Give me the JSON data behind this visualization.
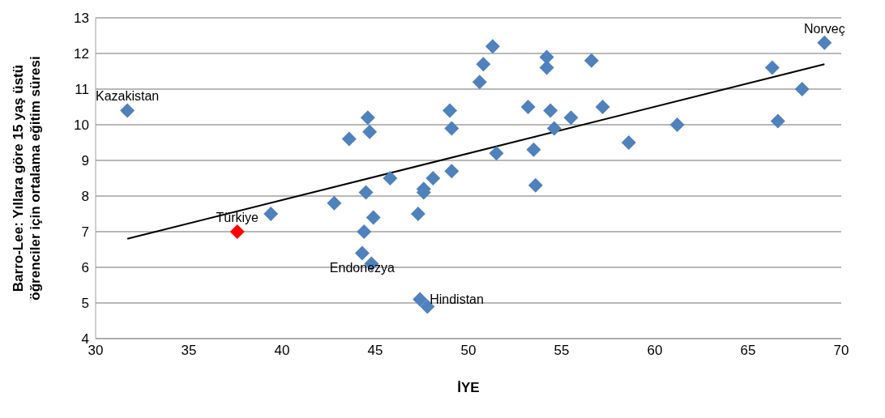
{
  "chart_data": {
    "type": "scatter",
    "xlabel": "İYE",
    "ylabel": "Barro-Lee: Yıllara göre 15 yaş üstü öğrenciler için ortalama eğitim süresi",
    "xlim": [
      30,
      70
    ],
    "xticks": [
      30,
      35,
      40,
      45,
      50,
      55,
      60,
      65,
      70
    ],
    "ylim": [
      4,
      13
    ],
    "yticks": [
      4,
      5,
      6,
      7,
      8,
      9,
      10,
      11,
      12,
      13
    ],
    "grid": "y",
    "marker": "diamond",
    "series": [
      {
        "color": "#4f81bd",
        "x": [
          31.7,
          37.6,
          39.4,
          42.8,
          43.6,
          44.6,
          44.7,
          44.5,
          44.4,
          44.9,
          44.3,
          44.8,
          45.8,
          47.3,
          47.6,
          47.6,
          48.1,
          47.4,
          47.8,
          49.0,
          49.1,
          49.1,
          50.6,
          50.8,
          51.3,
          51.5,
          53.2,
          53.5,
          53.6,
          54.2,
          54.2,
          54.4,
          54.6,
          55.5,
          56.6,
          57.2,
          58.6,
          61.2,
          66.3,
          66.6,
          67.9,
          69.1
        ],
        "values": [
          10.4,
          7.0,
          7.5,
          7.8,
          9.6,
          10.2,
          9.8,
          8.1,
          7.0,
          7.4,
          6.4,
          6.1,
          8.5,
          7.5,
          8.2,
          8.1,
          8.5,
          5.1,
          4.9,
          10.4,
          9.9,
          8.7,
          11.2,
          11.7,
          12.2,
          9.2,
          10.5,
          9.3,
          8.3,
          11.6,
          11.9,
          10.4,
          9.9,
          10.2,
          11.8,
          10.5,
          9.5,
          10.0,
          11.6,
          10.1,
          11.0,
          12.3
        ],
        "colors": [
          "#4f81bd",
          "#ff0000",
          "#4f81bd",
          "#4f81bd",
          "#4f81bd",
          "#4f81bd",
          "#4f81bd",
          "#4f81bd",
          "#4f81bd",
          "#4f81bd",
          "#4f81bd",
          "#4f81bd",
          "#4f81bd",
          "#4f81bd",
          "#4f81bd",
          "#4f81bd",
          "#4f81bd",
          "#4f81bd",
          "#4f81bd",
          "#4f81bd",
          "#4f81bd",
          "#4f81bd",
          "#4f81bd",
          "#4f81bd",
          "#4f81bd",
          "#4f81bd",
          "#4f81bd",
          "#4f81bd",
          "#4f81bd",
          "#4f81bd",
          "#4f81bd",
          "#4f81bd",
          "#4f81bd",
          "#4f81bd",
          "#4f81bd",
          "#4f81bd",
          "#4f81bd",
          "#4f81bd",
          "#4f81bd",
          "#4f81bd",
          "#4f81bd",
          "#4f81bd"
        ]
      },
      {
        "type": "line",
        "color": "#000000",
        "marker": "none",
        "x": [
          31.7,
          69.1
        ],
        "values": [
          6.8,
          11.7
        ]
      }
    ],
    "annotations": [
      {
        "text": "Kazakistan",
        "x": 31.7,
        "y": 10.4
      },
      {
        "text": "Türkiye",
        "x": 37.6,
        "y": 7.0
      },
      {
        "text": "Endonezya",
        "x": 44.3,
        "y": 6.4
      },
      {
        "text": "Hindistan",
        "x": 47.4,
        "y": 5.1
      },
      {
        "text": "Norveç",
        "x": 69.1,
        "y": 12.3
      }
    ]
  }
}
